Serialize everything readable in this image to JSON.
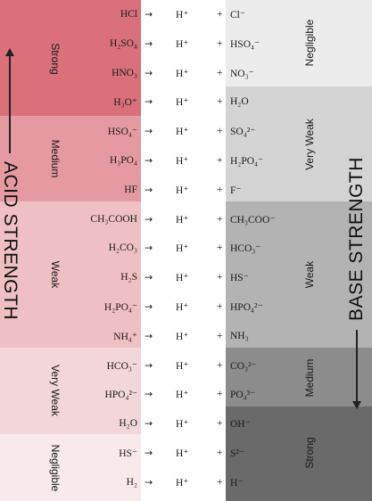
{
  "acid_axis_label": "ACID STRENGTH",
  "base_axis_label": "BASE STRENGTH",
  "acid_strength_groups": [
    {
      "label": "Strong",
      "color": "#d9707a"
    },
    {
      "label": "Medium",
      "color": "#e59aa2"
    },
    {
      "label": "Weak",
      "color": "#eebfc3"
    },
    {
      "label": "Very Weak",
      "color": "#f3d6d9"
    },
    {
      "label": "Negligible",
      "color": "#f8e9ea"
    }
  ],
  "base_strength_groups": [
    {
      "label": "Negligible",
      "color": "#ececec"
    },
    {
      "label": "Very Weak",
      "color": "#d4d4d4"
    },
    {
      "label": "Weak",
      "color": "#b3b3b3"
    },
    {
      "label": "Medium",
      "color": "#8c8c8c"
    },
    {
      "label": "Strong",
      "color": "#6a6a6a"
    }
  ],
  "arrow_symbol": "→",
  "proton": "H⁺",
  "plus_sign": "+",
  "reactions": [
    {
      "acid": "HCl",
      "base": "Cl⁻"
    },
    {
      "acid": "H₂SO₄",
      "base": "HSO₄⁻"
    },
    {
      "acid": "HNO₃",
      "base": "NO₃⁻"
    },
    {
      "acid": "H₃O⁺",
      "base": "H₂O"
    },
    {
      "acid": "HSO₄⁻",
      "base": "SO₄²⁻"
    },
    {
      "acid": "H₃PO₄",
      "base": "H₂PO₄⁻"
    },
    {
      "acid": "HF",
      "base": "F⁻"
    },
    {
      "acid": "CH₃COOH",
      "base": "CH₃COO⁻"
    },
    {
      "acid": "H₂CO₃",
      "base": "HCO₃⁻"
    },
    {
      "acid": "H₂S",
      "base": "HS⁻"
    },
    {
      "acid": "H₂PO₄⁻",
      "base": "HPO₄²⁻"
    },
    {
      "acid": "NH₄⁺",
      "base": "NH₃"
    },
    {
      "acid": "HCO₃⁻",
      "base": "CO₃²⁻"
    },
    {
      "acid": "HPO₄²⁻",
      "base": "PO₄³⁻"
    },
    {
      "acid": "H₂O",
      "base": "OH⁻"
    },
    {
      "acid": "HS⁻",
      "base": "S²⁻"
    },
    {
      "acid": "H₂",
      "base": "H⁻"
    }
  ]
}
